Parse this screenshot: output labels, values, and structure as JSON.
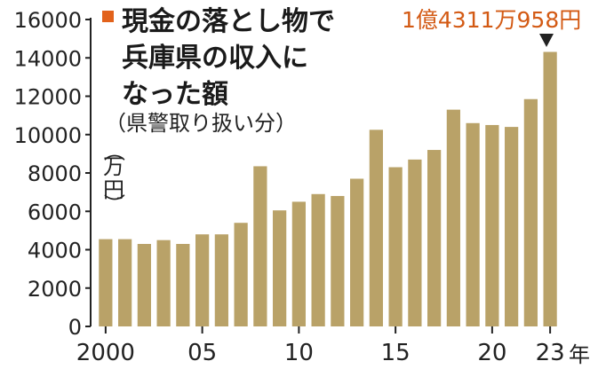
{
  "colors": {
    "bar": "#b9a268",
    "title_marker": "#e2621b",
    "callout": "#d35a14",
    "axis": "#222222"
  },
  "chart_data": {
    "type": "bar",
    "title_lines": [
      "現金の落とし物で",
      "兵庫県の収入に",
      "なった額"
    ],
    "subtitle": "（県警取り扱い分）",
    "ylabel_chars": [
      "（",
      "万",
      "円",
      "）"
    ],
    "xlabel": "年",
    "ylim": [
      0,
      16000
    ],
    "yticks": [
      0,
      2000,
      4000,
      6000,
      8000,
      10000,
      12000,
      14000,
      16000
    ],
    "categories": [
      "2000",
      "2001",
      "2002",
      "2003",
      "2004",
      "2005",
      "2006",
      "2007",
      "2008",
      "2009",
      "2010",
      "2011",
      "2012",
      "2013",
      "2014",
      "2015",
      "2016",
      "2017",
      "2018",
      "2019",
      "2020",
      "2021",
      "2022",
      "2023"
    ],
    "x_tick_labels": [
      {
        "category": "2000",
        "label": "2000"
      },
      {
        "category": "2005",
        "label": "05"
      },
      {
        "category": "2010",
        "label": "10"
      },
      {
        "category": "2015",
        "label": "15"
      },
      {
        "category": "2020",
        "label": "20"
      },
      {
        "category": "2023",
        "label": "23"
      }
    ],
    "values": [
      4550,
      4550,
      4300,
      4500,
      4300,
      4800,
      4800,
      5400,
      8350,
      6050,
      6500,
      6900,
      6800,
      7700,
      10250,
      8300,
      8700,
      9200,
      11300,
      10600,
      10500,
      10400,
      11850,
      14311
    ],
    "annotation": {
      "category": "2023",
      "text": "1億4311万958円"
    }
  }
}
